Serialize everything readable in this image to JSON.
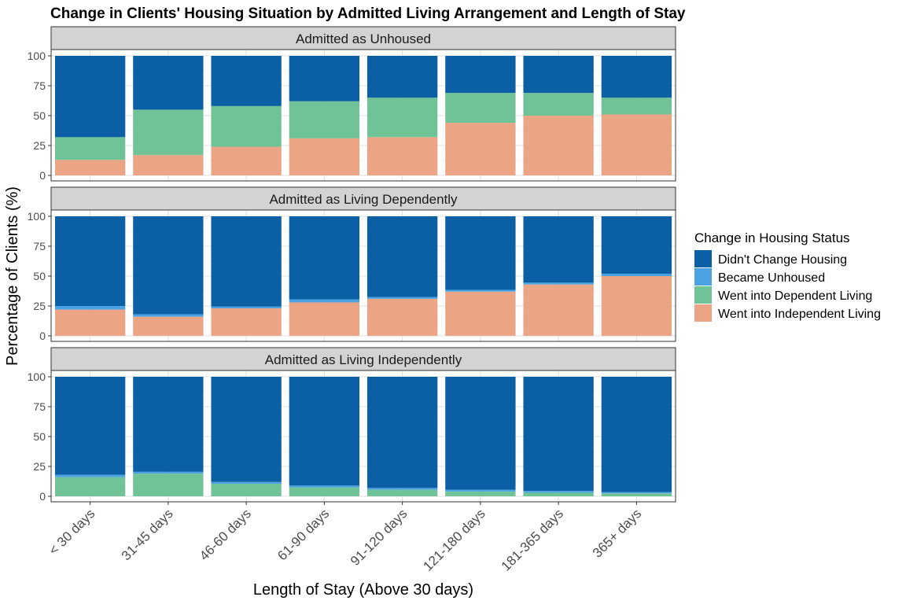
{
  "chart_data": {
    "type": "bar",
    "stacked": true,
    "title": "Change in Clients' Housing Situation by Admitted Living Arrangement and Length of Stay",
    "xlabel": "Length of Stay (Above 30 days)",
    "ylabel": "Percentage of Clients (%)",
    "ylim": [
      0,
      100
    ],
    "yticks": [
      0,
      25,
      50,
      75,
      100
    ],
    "grid": true,
    "legend": {
      "title": "Change in Housing Status",
      "placement": "right",
      "entries": [
        "Didn't Change Housing",
        "Became Unhoused",
        "Went into Dependent Living",
        "Went into Independent Living"
      ]
    },
    "categories": [
      "< 30 days",
      "31-45 days",
      "46-60 days",
      "61-90 days",
      "91-120 days",
      "121-180 days",
      "181-365 days",
      "365+ days"
    ],
    "series_colors": {
      "Didn't Change Housing": "#0a5fa5",
      "Became Unhoused": "#4ba3e3",
      "Went into Dependent Living": "#70c297",
      "Went into Independent Living": "#eba584"
    },
    "facets": [
      {
        "label": "Admitted as Unhoused",
        "series": [
          {
            "name": "Went into Independent Living",
            "values": [
              13,
              17,
              24,
              31,
              32,
              44,
              50,
              51
            ]
          },
          {
            "name": "Went into Dependent Living",
            "values": [
              19,
              38,
              34,
              31,
              33,
              25,
              19,
              14
            ]
          },
          {
            "name": "Became Unhoused",
            "values": [
              0,
              0,
              0,
              0,
              0,
              0,
              0,
              0
            ]
          },
          {
            "name": "Didn't Change Housing",
            "values": [
              68,
              45,
              42,
              38,
              35,
              31,
              31,
              35
            ]
          }
        ]
      },
      {
        "label": "Admitted as Living Dependently",
        "series": [
          {
            "name": "Went into Independent Living",
            "values": [
              22,
              16,
              23,
              28,
              31,
              37,
              43,
              50
            ]
          },
          {
            "name": "Went into Dependent Living",
            "values": [
              0,
              0,
              0,
              0,
              0,
              0,
              0,
              0
            ]
          },
          {
            "name": "Became Unhoused",
            "values": [
              3,
              2,
              1.5,
              2.5,
              1.5,
              1.5,
              1.5,
              2
            ]
          },
          {
            "name": "Didn't Change Housing",
            "values": [
              75,
              82,
              75.5,
              69.5,
              67.5,
              61.5,
              55.5,
              48
            ]
          }
        ]
      },
      {
        "label": "Admitted as Living Independently",
        "series": [
          {
            "name": "Went into Independent Living",
            "values": [
              0,
              0,
              0,
              0,
              0,
              0,
              0,
              0
            ]
          },
          {
            "name": "Went into Dependent Living",
            "values": [
              16,
              19,
              10.5,
              7.5,
              5.5,
              4,
              3,
              2.5
            ]
          },
          {
            "name": "Became Unhoused",
            "values": [
              2,
              1.5,
              1.5,
              1.5,
              1.5,
              1.5,
              1.5,
              1
            ]
          },
          {
            "name": "Didn't Change Housing",
            "values": [
              82,
              79.5,
              88,
              91,
              93,
              94.5,
              95.5,
              96.5
            ]
          }
        ]
      }
    ]
  }
}
